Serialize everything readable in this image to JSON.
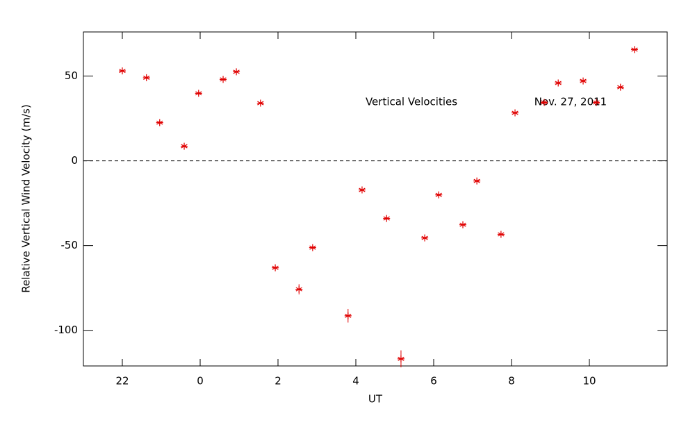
{
  "chart_data": {
    "type": "scatter",
    "annotations": [
      "Vertical Velocities",
      "Nov. 27, 2011"
    ],
    "xlabel": "UT",
    "ylabel": "Relative Vertical Wind Velocity (m/s)",
    "xlim": [
      -3,
      12
    ],
    "ylim": [
      -121,
      76
    ],
    "xticks": [
      {
        "value": -2,
        "label": "22"
      },
      0,
      2,
      4,
      6,
      8,
      10
    ],
    "yticks": [
      -100,
      -50,
      0,
      50
    ],
    "reference_line": 0,
    "series": [
      {
        "color": "#e00000",
        "x": [
          -2.0,
          -1.38,
          -1.04,
          -0.41,
          -0.04,
          0.59,
          0.93,
          1.55,
          1.93,
          2.54,
          2.89,
          3.8,
          4.16,
          4.79,
          5.16,
          5.77,
          6.13,
          6.75,
          7.11,
          7.73,
          8.09,
          8.84,
          9.2,
          9.84,
          10.18,
          10.8,
          11.16
        ],
        "values": [
          53,
          49,
          22.5,
          8.6,
          39.8,
          48,
          52.5,
          34,
          -63.1,
          -75.8,
          -51.2,
          -91.4,
          -17.2,
          -34,
          -116.8,
          -45.5,
          -20.1,
          -37.7,
          -11.9,
          -43.4,
          28.3,
          34.4,
          45.9,
          47.1,
          34.4,
          43.4,
          65.6
        ],
        "errors": [
          1,
          1,
          1,
          1,
          1,
          1,
          1,
          1,
          1,
          3,
          1,
          4,
          1,
          1,
          5,
          1,
          1,
          1,
          1,
          1,
          1,
          1,
          1,
          1,
          1,
          1,
          1
        ]
      }
    ]
  }
}
